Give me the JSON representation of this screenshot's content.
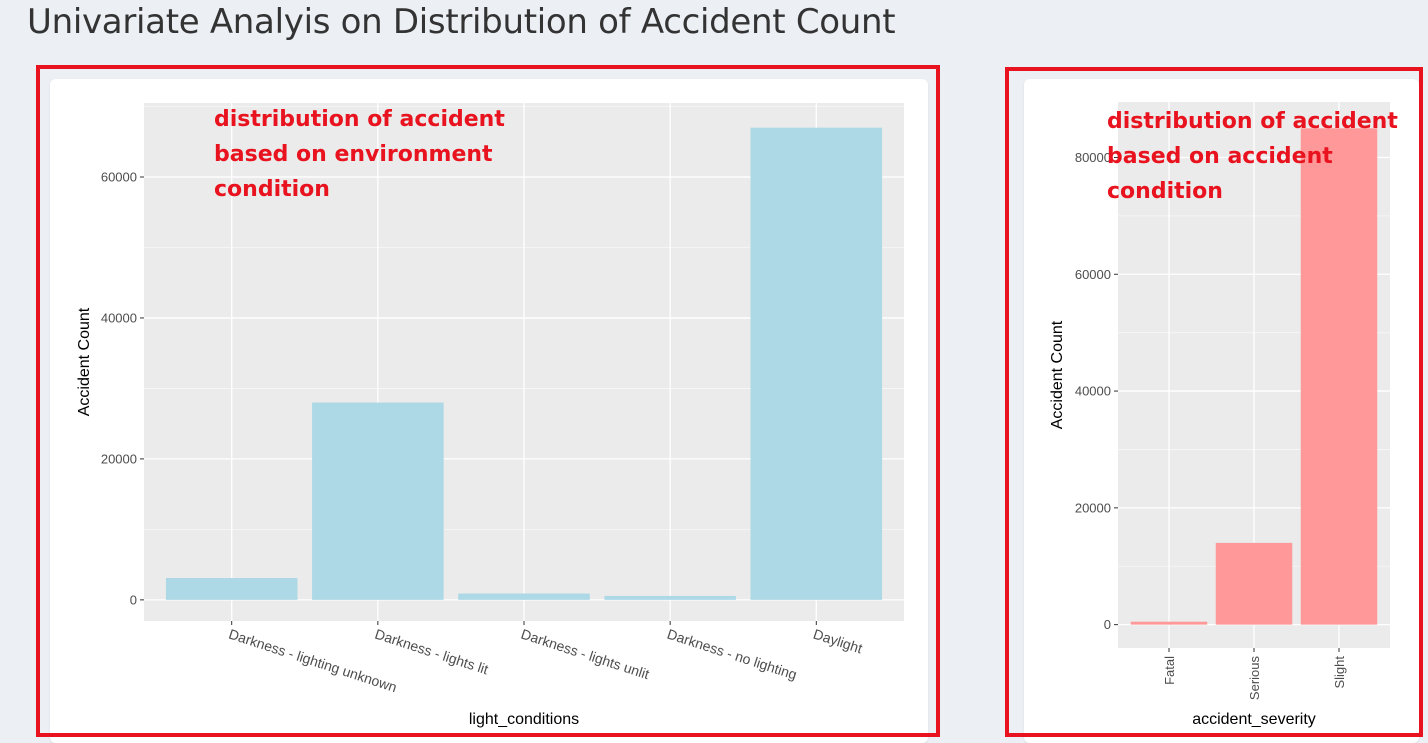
{
  "page": {
    "title": "Univariate Analyis on Distribution of Accident Count"
  },
  "annotations": {
    "left": [
      "distribution of accident",
      "based on environment",
      "condition"
    ],
    "right": [
      "distribution of accident",
      "based on accident",
      "condition"
    ]
  },
  "colors": {
    "left_bar": "#add8e6",
    "right_bar": "#ff9999",
    "panel_bg": "#ebebeb",
    "highlight": "#e8131e"
  },
  "chart_data": [
    {
      "type": "bar",
      "title": "",
      "xlabel": "light_conditions",
      "ylabel": "Accident Count",
      "categories": [
        "Darkness - lighting unknown",
        "Darkness - lights lit",
        "Darkness - lights unlit",
        "Darkness - no lighting",
        "Daylight"
      ],
      "values": [
        3100,
        28000,
        900,
        550,
        67000
      ],
      "ylim": [
        -3000,
        70500
      ],
      "yticks": [
        0,
        20000,
        40000,
        60000
      ],
      "ytick_labels": [
        "0",
        "20000",
        "40000",
        "60000"
      ],
      "grid": true
    },
    {
      "type": "bar",
      "title": "",
      "xlabel": "accident_severity",
      "ylabel": "Accident Count",
      "categories": [
        "Fatal",
        "Serious",
        "Slight"
      ],
      "values": [
        500,
        14000,
        85000
      ],
      "ylim": [
        -4000,
        89500
      ],
      "yticks": [
        0,
        20000,
        40000,
        60000,
        80000
      ],
      "ytick_labels": [
        "0",
        "20000",
        "40000",
        "60000",
        "80000"
      ],
      "grid": true
    }
  ]
}
